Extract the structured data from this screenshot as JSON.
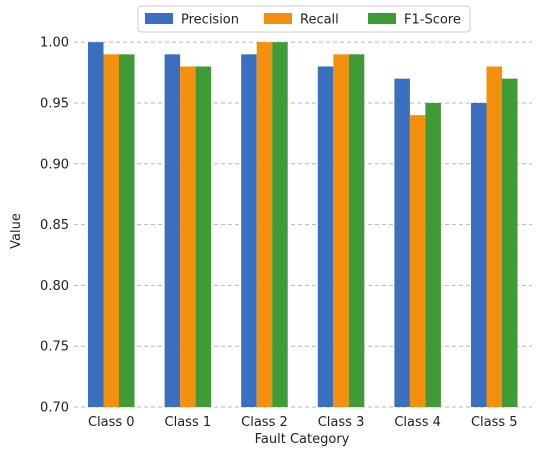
{
  "chart_data": {
    "type": "bar",
    "title": "",
    "xlabel": "Fault Category",
    "ylabel": "Value",
    "categories": [
      "Class 0",
      "Class 1",
      "Class 2",
      "Class 3",
      "Class 4",
      "Class 5"
    ],
    "series": [
      {
        "name": "Precision",
        "color": "#3a6fbf",
        "values": [
          1.0,
          0.99,
          0.99,
          0.98,
          0.97,
          0.95
        ]
      },
      {
        "name": "Recall",
        "color": "#f5900f",
        "values": [
          0.99,
          0.98,
          1.0,
          0.99,
          0.94,
          0.98
        ]
      },
      {
        "name": "F1-Score",
        "color": "#3e9b35",
        "values": [
          0.99,
          0.98,
          1.0,
          0.99,
          0.95,
          0.97
        ]
      }
    ],
    "ylim": [
      0.7,
      1.01
    ],
    "yticks": [
      "0.70",
      "0.75",
      "0.80",
      "0.85",
      "0.90",
      "0.95",
      "1.00"
    ],
    "grid": "y-dashed",
    "legend_position": "top-center"
  }
}
